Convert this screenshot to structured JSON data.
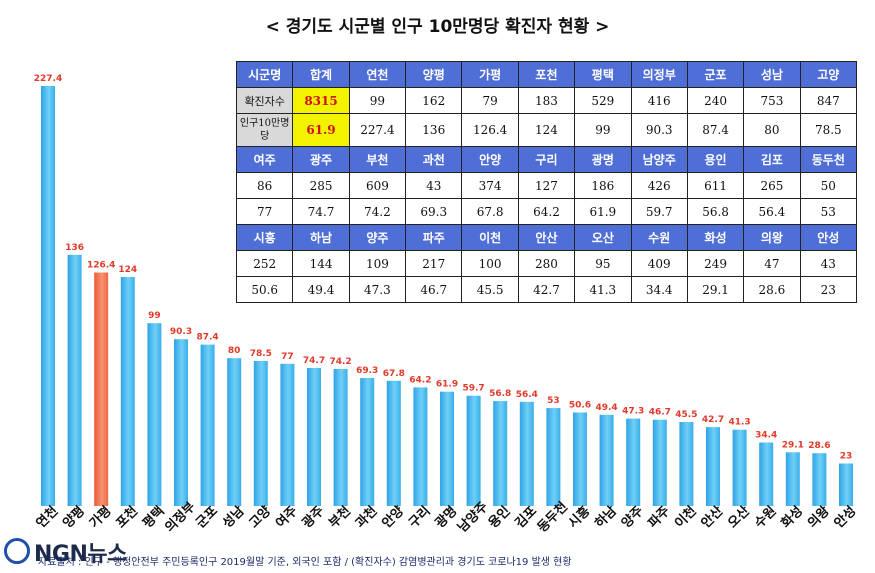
{
  "page_title": "< 경기도 시군별 인구 10만명당 확진자 현황 >",
  "chart_data": {
    "type": "bar",
    "title": "< 경기도 시군별 인구 10만명당 확진자 현황 >",
    "categories": [
      "연천",
      "양평",
      "가평",
      "포천",
      "평택",
      "의정부",
      "군포",
      "성남",
      "고양",
      "여주",
      "광주",
      "부천",
      "과천",
      "안양",
      "구리",
      "광명",
      "남양주",
      "용인",
      "김포",
      "동두천",
      "시흥",
      "하남",
      "양주",
      "파주",
      "이천",
      "안산",
      "오산",
      "수원",
      "화성",
      "의왕",
      "안성"
    ],
    "values": [
      227.4,
      136,
      126.4,
      124,
      99,
      90.3,
      87.4,
      80,
      78.5,
      77,
      74.7,
      74.2,
      69.3,
      67.8,
      64.2,
      61.9,
      59.7,
      56.8,
      56.4,
      53,
      50.6,
      49.4,
      47.3,
      46.7,
      45.5,
      42.7,
      41.3,
      34.4,
      29.1,
      28.6,
      23
    ],
    "value_labels": [
      "227.4",
      "136",
      "126.4",
      "124",
      "99",
      "90.3",
      "87.4",
      "80",
      "78.5",
      "77",
      "74.7",
      "74.2",
      "69.3",
      "67.8",
      "64.2",
      "61.9",
      "59.7",
      "56.8",
      "56.4",
      "53",
      "50.6",
      "49.4",
      "47.3",
      "46.7",
      "45.5",
      "42.7",
      "41.3",
      "34.4",
      "29.1",
      "28.6",
      "23"
    ],
    "highlight_category": "가평",
    "ylim": [
      0,
      235
    ],
    "grid": false,
    "xlabel": "",
    "ylabel": ""
  },
  "colors": {
    "bar": "#4bb8ee",
    "bar_highlight": "#f07050",
    "label": "#e03a2a",
    "table_header": "#4f6fd6",
    "total_highlight": "#f3f300"
  },
  "table": {
    "block1": {
      "header": [
        "시군명",
        "합계",
        "연천",
        "양평",
        "가평",
        "포천",
        "평택",
        "의정부",
        "군포",
        "성남",
        "고양"
      ],
      "cases_label": "확진자수",
      "cases": [
        "8315",
        "99",
        "162",
        "79",
        "183",
        "529",
        "416",
        "240",
        "753",
        "847"
      ],
      "rate_label": "인구10만명당",
      "rate": [
        "61.9",
        "227.4",
        "136",
        "126.4",
        "124",
        "99",
        "90.3",
        "87.4",
        "80",
        "78.5"
      ]
    },
    "block2": {
      "header": [
        "여주",
        "광주",
        "부천",
        "과천",
        "안양",
        "구리",
        "광명",
        "남양주",
        "용인",
        "김포",
        "동두천"
      ],
      "cases": [
        "86",
        "285",
        "609",
        "43",
        "374",
        "127",
        "186",
        "426",
        "611",
        "265",
        "50"
      ],
      "rate": [
        "77",
        "74.7",
        "74.2",
        "69.3",
        "67.8",
        "64.2",
        "61.9",
        "59.7",
        "56.8",
        "56.4",
        "53"
      ]
    },
    "block3": {
      "header": [
        "시흥",
        "하남",
        "양주",
        "파주",
        "이천",
        "안산",
        "오산",
        "수원",
        "화성",
        "의왕",
        "안성"
      ],
      "cases": [
        "252",
        "144",
        "109",
        "217",
        "100",
        "280",
        "95",
        "409",
        "249",
        "47",
        "43"
      ],
      "rate": [
        "50.6",
        "49.4",
        "47.3",
        "46.7",
        "45.5",
        "42.7",
        "41.3",
        "34.4",
        "29.1",
        "28.6",
        "23"
      ]
    }
  },
  "logo": {
    "text": "NGN뉴스"
  },
  "footnote": "자료출처 : 인구 - 행정안전부 주민등록인구 2019월말 기준, 외국인 포함 / (확진자수) 감염병관리과 경기도 코로나19 발생 현황"
}
